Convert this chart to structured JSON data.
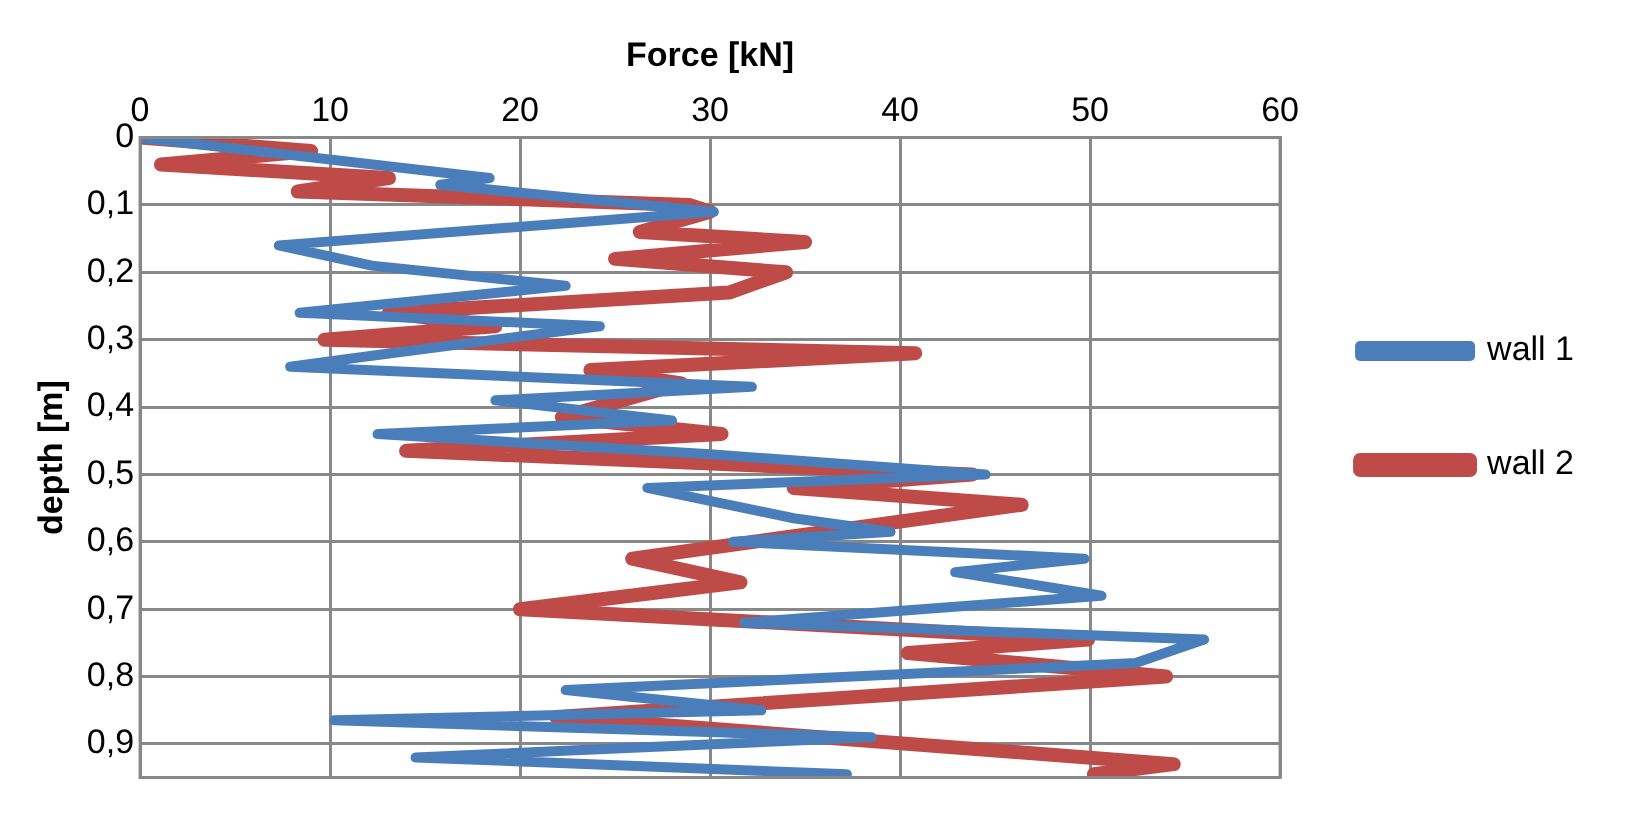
{
  "chart_data": {
    "type": "line",
    "xlabel": "Force [kN]",
    "ylabel": "depth [m]",
    "xlim": [
      0,
      60
    ],
    "xticks": [
      0,
      10,
      20,
      30,
      40,
      50,
      60
    ],
    "ylim": [
      0.95,
      0
    ],
    "yticks": [
      0,
      {
        "value": 0.1,
        "label": "0,1"
      },
      {
        "value": 0.2,
        "label": "0,2"
      },
      {
        "value": 0.3,
        "label": "0,3"
      },
      {
        "value": 0.4,
        "label": "0,4"
      },
      {
        "value": 0.5,
        "label": "0,5"
      },
      {
        "value": 0.6,
        "label": "0,6"
      },
      {
        "value": 0.7,
        "label": "0,7"
      },
      {
        "value": 0.8,
        "label": "0,8"
      },
      {
        "value": 0.9,
        "label": "0,9"
      }
    ],
    "grid": true,
    "legend": "right",
    "marker": "none",
    "line_style": "solid",
    "series": [
      {
        "name": "wall 1",
        "color": "#4a7ebb",
        "x": [
          0,
          18.4,
          15.8,
          30.2,
          7.3,
          12.2,
          22.4,
          8.4,
          24.2,
          13.2,
          7.9,
          32.2,
          18.7,
          28,
          12.5,
          30,
          44.5,
          26.7,
          34.4,
          39.5,
          31.2,
          49.7,
          42.9,
          50.6,
          31.8,
          56,
          52.4,
          22.4,
          32.7,
          10.2,
          38.5,
          14.5,
          37.2
        ],
        "values": [
          0,
          0.06,
          0.07,
          0.11,
          0.16,
          0.19,
          0.22,
          0.26,
          0.28,
          0.32,
          0.34,
          0.37,
          0.39,
          0.42,
          0.44,
          0.47,
          0.5,
          0.52,
          0.565,
          0.585,
          0.6,
          0.625,
          0.645,
          0.68,
          0.72,
          0.745,
          0.78,
          0.82,
          0.85,
          0.865,
          0.89,
          0.92,
          0.945
        ]
      },
      {
        "name": "wall 2",
        "color": "#be4b48",
        "x": [
          0,
          9,
          1.1,
          13.1,
          8.3,
          28.9,
          30,
          26.3,
          35,
          25,
          34,
          31,
          13.1,
          18.7,
          9.7,
          40.8,
          23.7,
          28.5,
          22.2,
          30.6,
          14,
          43.8,
          34.4,
          46.4,
          25.9,
          31.6,
          20,
          49.9,
          40.4,
          54,
          21.9,
          54.4,
          50.2
        ],
        "values": [
          0,
          0.02,
          0.04,
          0.06,
          0.08,
          0.1,
          0.11,
          0.14,
          0.155,
          0.18,
          0.2,
          0.23,
          0.26,
          0.28,
          0.3,
          0.32,
          0.345,
          0.365,
          0.415,
          0.44,
          0.465,
          0.5,
          0.52,
          0.545,
          0.625,
          0.66,
          0.7,
          0.745,
          0.765,
          0.8,
          0.86,
          0.93,
          0.945
        ]
      }
    ]
  }
}
